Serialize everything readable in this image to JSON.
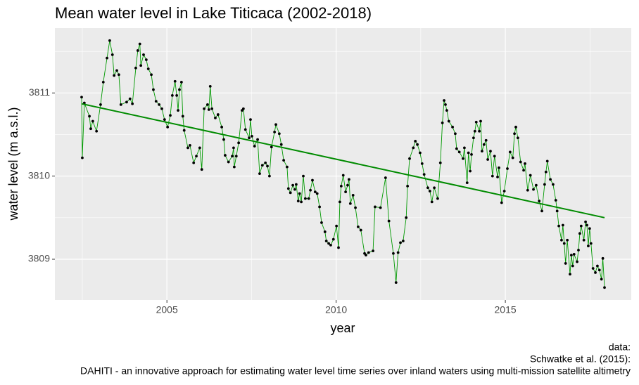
{
  "chart_data": {
    "type": "line",
    "title": "Mean water level in Lake Titicaca (2002-2018)",
    "xlabel": "year",
    "ylabel": "water level (m a.s.l.)",
    "caption": [
      "data:",
      "Schwatke et al. (2015):",
      "DAHITI - an innovative approach for estimating water level time series over inland waters using multi-mission satellite altimetry"
    ],
    "xlim": [
      2001.69,
      2018.72
    ],
    "ylim": [
      3808.51,
      3811.78
    ],
    "xticks": [
      2005,
      2010,
      2015
    ],
    "yticks": [
      3809,
      3810,
      3811
    ],
    "minor_xticks": [
      2002.5,
      2007.5,
      2012.5,
      2017.5
    ],
    "minor_yticks": [
      3809.5,
      3810.5,
      3811.5
    ],
    "grid": true,
    "x": [
      2002.48,
      2002.5,
      2002.56,
      2002.71,
      2002.75,
      2002.81,
      2002.92,
      2003.04,
      2003.12,
      2003.23,
      2003.31,
      2003.39,
      2003.44,
      2003.52,
      2003.58,
      2003.64,
      2003.81,
      2003.91,
      2003.98,
      2004.08,
      2004.14,
      2004.2,
      2004.23,
      2004.31,
      2004.39,
      2004.45,
      2004.54,
      2004.6,
      2004.68,
      2004.77,
      2004.85,
      2004.93,
      2005.02,
      2005.1,
      2005.16,
      2005.24,
      2005.29,
      2005.33,
      2005.37,
      2005.43,
      2005.47,
      2005.51,
      2005.62,
      2005.68,
      2005.79,
      2005.87,
      2005.97,
      2006.03,
      2006.1,
      2006.2,
      2006.24,
      2006.28,
      2006.33,
      2006.43,
      2006.51,
      2006.62,
      2006.68,
      2006.72,
      2006.82,
      2006.93,
      2006.97,
      2006.99,
      2007.05,
      2007.12,
      2007.22,
      2007.26,
      2007.32,
      2007.43,
      2007.47,
      2007.51,
      2007.59,
      2007.68,
      2007.74,
      2007.82,
      2007.91,
      2007.97,
      2008.03,
      2008.09,
      2008.18,
      2008.22,
      2008.32,
      2008.38,
      2008.45,
      2008.55,
      2008.59,
      2008.65,
      2008.72,
      2008.78,
      2008.82,
      2008.88,
      2008.92,
      2008.97,
      2009.03,
      2009.09,
      2009.19,
      2009.24,
      2009.3,
      2009.38,
      2009.44,
      2009.51,
      2009.57,
      2009.67,
      2009.71,
      2009.78,
      2009.84,
      2009.92,
      2010.01,
      2010.07,
      2010.11,
      2010.15,
      2010.21,
      2010.28,
      2010.34,
      2010.38,
      2010.42,
      2010.5,
      2010.57,
      2010.65,
      2010.73,
      2010.84,
      2010.88,
      2010.96,
      2011.09,
      2011.15,
      2011.31,
      2011.46,
      2011.56,
      2011.69,
      2011.77,
      2011.83,
      2011.9,
      2011.98,
      2012.07,
      2012.11,
      2012.17,
      2012.28,
      2012.34,
      2012.4,
      2012.48,
      2012.54,
      2012.6,
      2012.71,
      2012.77,
      2012.83,
      2012.9,
      2013.0,
      2013.08,
      2013.14,
      2013.19,
      2013.23,
      2013.27,
      2013.33,
      2013.44,
      2013.52,
      2013.56,
      2013.64,
      2013.75,
      2013.79,
      2013.87,
      2013.91,
      2013.96,
      2014.0,
      2014.06,
      2014.1,
      2014.14,
      2014.23,
      2014.27,
      2014.31,
      2014.37,
      2014.43,
      2014.48,
      2014.56,
      2014.62,
      2014.68,
      2014.77,
      2014.81,
      2014.89,
      2014.97,
      2015.06,
      2015.14,
      2015.22,
      2015.27,
      2015.31,
      2015.37,
      2015.45,
      2015.54,
      2015.58,
      2015.66,
      2015.74,
      2015.83,
      2015.91,
      2016.0,
      2016.08,
      2016.16,
      2016.2,
      2016.24,
      2016.33,
      2016.41,
      2016.49,
      2016.53,
      2016.58,
      2016.66,
      2016.7,
      2016.74,
      2016.78,
      2016.83,
      2016.91,
      2016.95,
      2016.99,
      2017.03,
      2017.12,
      2017.16,
      2017.2,
      2017.24,
      2017.32,
      2017.37,
      2017.41,
      2017.45,
      2017.49,
      2017.53,
      2017.59,
      2017.66,
      2017.72,
      2017.78,
      2017.84,
      2017.88,
      2017.93
    ],
    "series": [
      {
        "color": "#009900",
        "point_color": "#000000",
        "values": [
          3810.95,
          3810.22,
          3810.88,
          3810.72,
          3810.57,
          3810.66,
          3810.54,
          3810.86,
          3811.13,
          3811.42,
          3811.63,
          3811.46,
          3811.21,
          3811.27,
          3811.22,
          3810.86,
          3810.89,
          3810.93,
          3810.87,
          3811.3,
          3811.51,
          3811.59,
          3811.33,
          3811.46,
          3811.4,
          3811.29,
          3811.22,
          3811.04,
          3810.9,
          3810.86,
          3810.81,
          3810.68,
          3810.59,
          3810.73,
          3810.97,
          3811.14,
          3810.97,
          3810.79,
          3811.04,
          3811.13,
          3810.72,
          3810.55,
          3810.34,
          3810.37,
          3810.16,
          3810.24,
          3810.34,
          3810.08,
          3810.81,
          3810.86,
          3810.8,
          3811.08,
          3810.81,
          3810.7,
          3810.74,
          3810.59,
          3810.44,
          3810.25,
          3810.17,
          3810.24,
          3810.34,
          3810.11,
          3810.24,
          3810.4,
          3810.79,
          3810.81,
          3810.56,
          3810.46,
          3810.68,
          3810.48,
          3810.36,
          3810.44,
          3810.03,
          3810.13,
          3810.16,
          3810.12,
          3810.0,
          3810.35,
          3810.53,
          3810.62,
          3810.51,
          3810.38,
          3810.19,
          3810.11,
          3809.85,
          3809.8,
          3809.89,
          3809.84,
          3809.9,
          3809.7,
          3809.79,
          3809.69,
          3810.0,
          3809.73,
          3809.73,
          3809.83,
          3809.95,
          3809.81,
          3809.79,
          3809.63,
          3809.44,
          3809.33,
          3809.22,
          3809.19,
          3809.17,
          3809.24,
          3809.4,
          3809.14,
          3809.69,
          3809.88,
          3810.01,
          3809.81,
          3809.89,
          3809.96,
          3809.67,
          3809.77,
          3809.62,
          3809.39,
          3809.35,
          3809.07,
          3809.05,
          3809.08,
          3809.1,
          3809.63,
          3809.62,
          3809.98,
          3809.46,
          3809.07,
          3808.72,
          3809.08,
          3809.2,
          3809.22,
          3809.5,
          3809.88,
          3810.21,
          3810.34,
          3810.42,
          3810.38,
          3810.28,
          3810.15,
          3810.02,
          3809.86,
          3809.82,
          3809.69,
          3809.86,
          3809.73,
          3810.16,
          3810.64,
          3810.91,
          3810.86,
          3810.79,
          3810.66,
          3810.59,
          3810.51,
          3810.33,
          3810.29,
          3810.21,
          3810.34,
          3809.92,
          3810.28,
          3810.06,
          3810.26,
          3810.46,
          3810.54,
          3810.65,
          3810.54,
          3810.66,
          3810.3,
          3810.38,
          3810.43,
          3810.2,
          3810.3,
          3810.0,
          3810.24,
          3809.99,
          3810.1,
          3809.68,
          3809.82,
          3810.09,
          3810.29,
          3810.22,
          3810.51,
          3810.59,
          3810.46,
          3810.17,
          3810.07,
          3810.15,
          3809.83,
          3810.01,
          3809.84,
          3809.89,
          3809.7,
          3809.58,
          3809.9,
          3810.05,
          3810.18,
          3809.96,
          3809.9,
          3809.71,
          3809.58,
          3809.4,
          3809.23,
          3809.41,
          3809.19,
          3808.95,
          3809.23,
          3808.82,
          3809.05,
          3808.92,
          3809.06,
          3808.97,
          3809.11,
          3809.31,
          3809.4,
          3809.23,
          3809.45,
          3809.41,
          3809.16,
          3809.37,
          3809.19,
          3808.89,
          3808.84,
          3808.92,
          3808.87,
          3808.76,
          3809.01,
          3808.66
        ]
      }
    ],
    "trend": {
      "color": "#008b00",
      "x": [
        2002.48,
        2017.93
      ],
      "values": [
        3810.87,
        3809.5
      ]
    }
  }
}
